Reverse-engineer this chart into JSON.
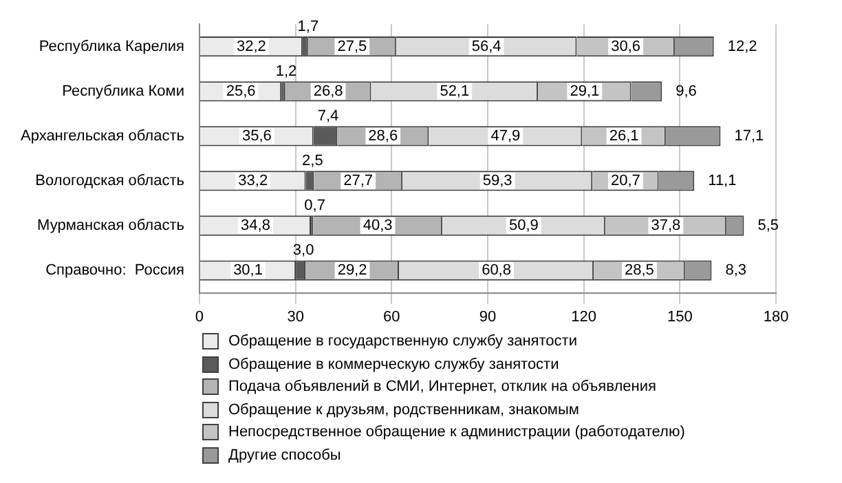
{
  "chart_data": {
    "type": "bar",
    "orientation": "horizontal",
    "stacked": true,
    "categories": [
      "Республика Карелия",
      "Республика Коми",
      "Архангельская область",
      "Вологодская область",
      "Мурманская область",
      "Справочно:  Россия"
    ],
    "series": [
      {
        "name": "Обращение в государственную службу занятости",
        "color": "#ebebeb",
        "values": [
          32.2,
          25.6,
          35.6,
          33.2,
          34.8,
          30.1
        ],
        "value_labels": [
          "32,2",
          "25,6",
          "35,6",
          "33,2",
          "34,8",
          "30,1"
        ]
      },
      {
        "name": "Обращение в коммерческую службу занятости",
        "color": "#5a5a5a",
        "values": [
          1.7,
          1.2,
          7.4,
          2.5,
          0.7,
          3.0
        ],
        "value_labels": [
          "1,7",
          "1,2",
          "7,4",
          "2,5",
          "0,7",
          "3,0"
        ]
      },
      {
        "name": "Подача объявлений в СМИ, Интернет, отклик на объявления",
        "color": "#b4b4b4",
        "values": [
          27.5,
          26.8,
          28.6,
          27.7,
          40.3,
          29.2
        ],
        "value_labels": [
          "27,5",
          "26,8",
          "28,6",
          "27,7",
          "40,3",
          "29,2"
        ]
      },
      {
        "name": "Обращение к друзьям, родственникам, знакомым",
        "color": "#dcdcdc",
        "values": [
          56.4,
          52.1,
          47.9,
          59.3,
          50.9,
          60.8
        ],
        "value_labels": [
          "56,4",
          "52,1",
          "47,9",
          "59,3",
          "50,9",
          "60,8"
        ]
      },
      {
        "name": "Непосредственное обращение к администрации (работодателю)",
        "color": "#c4c4c4",
        "values": [
          30.6,
          29.1,
          26.1,
          20.7,
          37.8,
          28.5
        ],
        "value_labels": [
          "30,6",
          "29,1",
          "26,1",
          "20,7",
          "37,8",
          "28,5"
        ]
      },
      {
        "name": "Другие способы",
        "color": "#9a9a9a",
        "values": [
          12.2,
          9.6,
          17.1,
          11.1,
          5.5,
          8.3
        ],
        "value_labels": [
          "12,2",
          "9,6",
          "17,1",
          "11,1",
          "5,5",
          "8,3"
        ]
      }
    ],
    "xlim": [
      0,
      180
    ],
    "xticks": [
      0,
      30,
      60,
      90,
      120,
      150,
      180
    ],
    "grid": "x",
    "legend": "bottom"
  }
}
